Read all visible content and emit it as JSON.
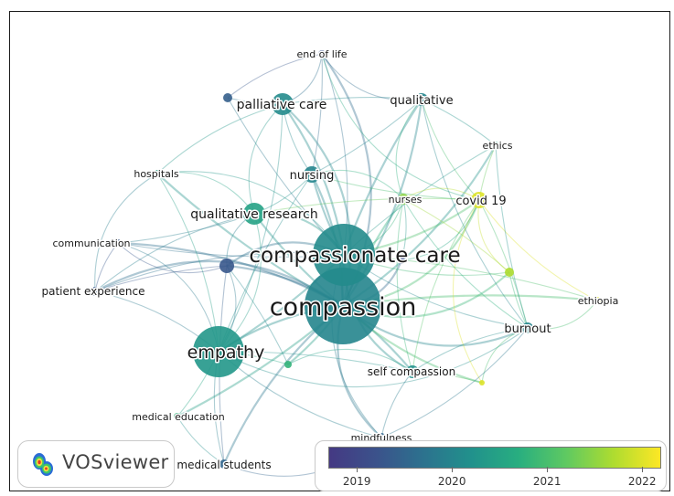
{
  "app": {
    "logo_text": "VOSviewer"
  },
  "colors": {
    "gradient_stops": [
      "#443983",
      "#3b528b",
      "#2c728e",
      "#21918c",
      "#28ae80",
      "#5ec962",
      "#addc30",
      "#fde725"
    ],
    "link_cool": "#8a9fd6",
    "link_mid": "#6fbfb6",
    "link_warm": "#e3e35a"
  },
  "legend": {
    "ticks": [
      "2019",
      "2020",
      "2021",
      "2022"
    ],
    "tick_values": [
      2019,
      2020,
      2021,
      2022
    ],
    "range": [
      2018.7,
      2022.2
    ]
  },
  "network": {
    "nodes": [
      {
        "id": "compassion",
        "label": "compassion",
        "year": 2020.0
      },
      {
        "id": "compassionate_care",
        "label": "compassionate care",
        "year": 2020.1
      },
      {
        "id": "empathy",
        "label": "empathy",
        "year": 2020.3
      },
      {
        "id": "palliative_care",
        "label": "palliative care",
        "year": 2020.1
      },
      {
        "id": "qualitative_research",
        "label": "qualitative research",
        "year": 2020.5
      },
      {
        "id": "nursing",
        "label": "nursing",
        "year": 2020.0
      },
      {
        "id": "covid_19",
        "label": "covid 19",
        "year": 2022.0
      },
      {
        "id": "nurses",
        "label": "nurses",
        "year": 2021.5
      },
      {
        "id": "qualitative",
        "label": "qualitative",
        "year": 2020.0
      },
      {
        "id": "burnout",
        "label": "burnout",
        "year": 2020.0
      },
      {
        "id": "self_compassion",
        "label": "self compassion",
        "year": 2020.2
      },
      {
        "id": "ethics",
        "label": "ethics",
        "year": 2020.5
      },
      {
        "id": "end_of_life",
        "label": "end of life",
        "year": 2019.2
      },
      {
        "id": "hospitals",
        "label": "hospitals",
        "year": 2020.5
      },
      {
        "id": "communication",
        "label": "communication",
        "year": 2019.3
      },
      {
        "id": "patient_experience",
        "label": "patient experience",
        "year": 2019.3
      },
      {
        "id": "medical_education",
        "label": "medical education",
        "year": 2020.8
      },
      {
        "id": "medical_students",
        "label": "medical students",
        "year": 2019.5
      },
      {
        "id": "mindfulness",
        "label": "mindfulness",
        "year": 2019.5
      },
      {
        "id": "ethiopia",
        "label": "ethiopia",
        "year": 2022.0
      },
      {
        "id": "u1",
        "label": "",
        "year": 2019.3
      },
      {
        "id": "u2",
        "label": "",
        "year": 2019.4
      },
      {
        "id": "u3",
        "label": "",
        "year": 2021.7
      },
      {
        "id": "u4",
        "label": "",
        "year": 2020.8
      },
      {
        "id": "u5",
        "label": "",
        "year": 2022.0
      },
      {
        "id": "u6",
        "label": "",
        "year": 2019.1
      }
    ]
  }
}
